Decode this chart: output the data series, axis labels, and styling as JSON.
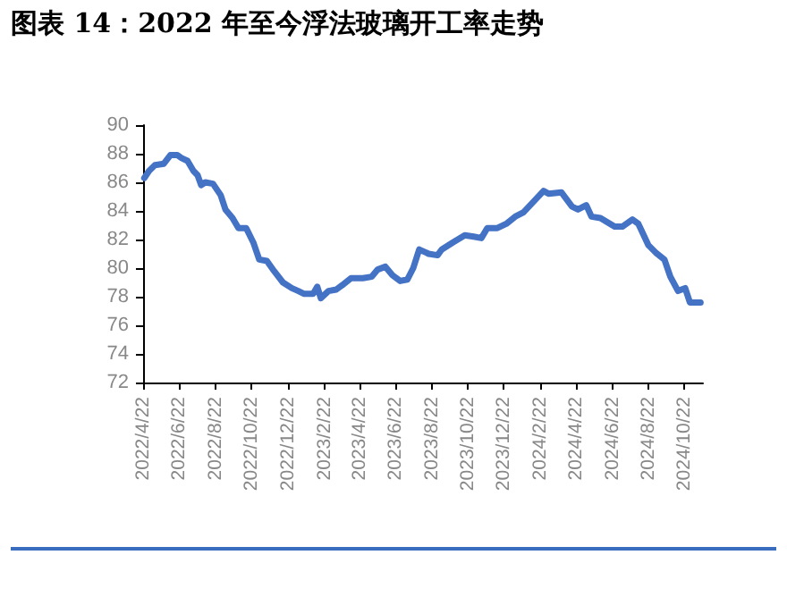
{
  "chart_data": {
    "type": "line",
    "title": "图表 14：2022 年至今浮法玻璃开工率走势",
    "x": [
      "2022-04-24",
      "2022-05-02",
      "2022-05-12",
      "2022-05-27",
      "2022-06-07",
      "2022-06-19",
      "2022-06-26",
      "2022-07-06",
      "2022-07-16",
      "2022-07-23",
      "2022-07-29",
      "2022-08-05",
      "2022-08-18",
      "2022-08-31",
      "2022-09-08",
      "2022-09-20",
      "2022-09-30",
      "2022-10-13",
      "2022-10-25",
      "2022-11-04",
      "2022-11-17",
      "2022-11-29",
      "2022-12-14",
      "2022-12-29",
      "2023-01-09",
      "2023-01-19",
      "2023-02-03",
      "2023-02-10",
      "2023-02-16",
      "2023-03-01",
      "2023-03-14",
      "2023-03-24",
      "2023-04-08",
      "2023-04-28",
      "2023-05-13",
      "2023-05-23",
      "2023-06-05",
      "2023-06-17",
      "2023-06-30",
      "2023-07-12",
      "2023-07-22",
      "2023-08-01",
      "2023-08-12",
      "2023-08-17",
      "2023-09-01",
      "2023-09-08",
      "2023-09-27",
      "2023-10-17",
      "2023-11-01",
      "2023-11-14",
      "2023-11-24",
      "2023-12-11",
      "2023-12-26",
      "2024-01-10",
      "2024-01-24",
      "2024-02-09",
      "2024-02-27",
      "2024-03-07",
      "2024-03-28",
      "2024-04-15",
      "2024-04-25",
      "2024-05-09",
      "2024-05-18",
      "2024-06-02",
      "2024-06-26",
      "2024-07-09",
      "2024-07-26",
      "2024-08-05",
      "2024-08-22",
      "2024-09-03",
      "2024-09-18",
      "2024-09-28",
      "2024-10-11",
      "2024-10-23",
      "2024-10-31",
      "2024-11-18"
    ],
    "series": [
      {
        "color": "#4472c4",
        "values": [
          86.3,
          86.8,
          87.2,
          87.3,
          87.9,
          87.9,
          87.7,
          87.5,
          86.8,
          86.5,
          85.8,
          86.0,
          85.9,
          85.1,
          84.1,
          83.5,
          82.8,
          82.8,
          81.8,
          80.6,
          80.5,
          79.8,
          79.0,
          78.6,
          78.4,
          78.2,
          78.2,
          78.7,
          77.9,
          78.4,
          78.5,
          78.8,
          79.3,
          79.3,
          79.4,
          79.9,
          80.1,
          79.5,
          79.1,
          79.2,
          80.0,
          81.3,
          81.1,
          81.0,
          80.9,
          81.3,
          81.8,
          82.3,
          82.2,
          82.1,
          82.8,
          82.8,
          83.1,
          83.6,
          83.9,
          84.6,
          85.4,
          85.2,
          85.3,
          84.3,
          84.1,
          84.4,
          83.6,
          83.5,
          82.9,
          82.9,
          83.4,
          83.1,
          81.6,
          81.1,
          80.6,
          79.4,
          78.4,
          78.6,
          77.6,
          77.6
        ]
      }
    ],
    "xlim": [
      "2022-04-22",
      "2024-11-22"
    ],
    "xticks": [
      {
        "value": "2022-04-22",
        "label": "2022/4/22"
      },
      {
        "value": "2022-06-22",
        "label": "2022/6/22"
      },
      {
        "value": "2022-08-22",
        "label": "2022/8/22"
      },
      {
        "value": "2022-10-22",
        "label": "2022/10/22"
      },
      {
        "value": "2022-12-22",
        "label": "2022/12/22"
      },
      {
        "value": "2023-02-22",
        "label": "2023/2/22"
      },
      {
        "value": "2023-04-22",
        "label": "2023/4/22"
      },
      {
        "value": "2023-06-22",
        "label": "2023/6/22"
      },
      {
        "value": "2023-08-22",
        "label": "2023/8/22"
      },
      {
        "value": "2023-10-22",
        "label": "2023/10/22"
      },
      {
        "value": "2023-12-22",
        "label": "2023/12/22"
      },
      {
        "value": "2024-02-22",
        "label": "2024/2/22"
      },
      {
        "value": "2024-04-22",
        "label": "2024/4/22"
      },
      {
        "value": "2024-06-22",
        "label": "2024/6/22"
      },
      {
        "value": "2024-08-22",
        "label": "2024/8/22"
      },
      {
        "value": "2024-10-22",
        "label": "2024/10/22"
      }
    ],
    "ylim": [
      72,
      90
    ],
    "yticks": [
      72,
      74,
      76,
      78,
      80,
      82,
      84,
      86,
      88,
      90
    ],
    "grid": false,
    "marker": "none",
    "line_style": "solid"
  }
}
